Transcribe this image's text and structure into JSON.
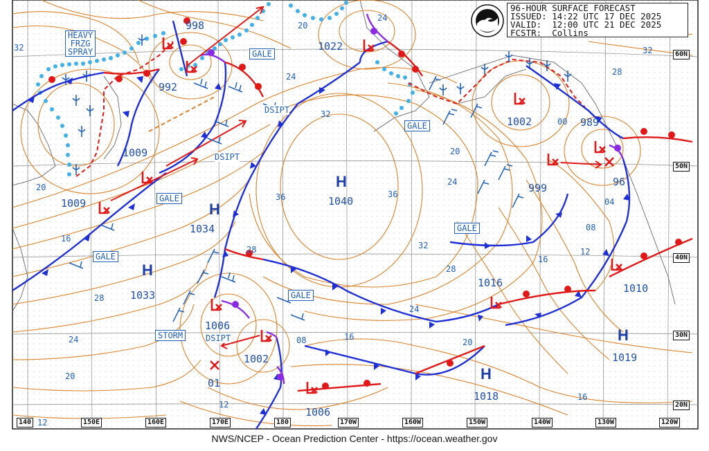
{
  "header": {
    "line1": "96-HOUR SURFACE FORECAST",
    "line2": "ISSUED: 14:22 UTC 17 DEC 2025",
    "line3": "VALID:  12:00 UTC 21 DEC 2025",
    "line4": "FCSTR:  Collins"
  },
  "logo": {
    "text": "NOAA"
  },
  "footer": {
    "credit": "NWS/NCEP - Ocean Prediction Center - https://ocean.weather.gov"
  },
  "latitudes": [
    "60N",
    "50N",
    "40N",
    "30N",
    "20N"
  ],
  "longitudes": [
    "140",
    "150E",
    "160E",
    "170E",
    "180",
    "170W",
    "160W",
    "150W",
    "140W",
    "130W",
    "120W"
  ],
  "warnings": {
    "heavy_frzg_spray": [
      "HEAVY",
      "FRZG",
      "SPRAY"
    ],
    "gale_1": "GALE",
    "gale_2": "GALE",
    "gale_3": "GALE",
    "gale_4": "GALE",
    "gale_5": "GALE",
    "gale_6": "GALE",
    "storm": "STORM"
  },
  "dsipt": {
    "d1": "DSIPT",
    "d2": "DSIPT",
    "d3": "DSIPT"
  },
  "highs": {
    "h1": "H",
    "h1_val": "1040",
    "h2": "H",
    "h2_val": "1034",
    "h3": "H",
    "h3_val": "1033",
    "h4": "H",
    "h4_val": "1018",
    "h5": "H",
    "h5_val": "1019"
  },
  "lows": {
    "l998": "998",
    "l992": "992",
    "l1009a": "1009",
    "l1009b": "1009",
    "l1022": "1022",
    "l1002": "1002",
    "l989": "989",
    "l999": "999",
    "l96": "96",
    "l1016": "1016",
    "l1010": "1010",
    "l1006a": "1006",
    "l1002b": "1002",
    "l1006b": "1006",
    "l01": "01"
  },
  "iso_labels": {
    "i32a": "32",
    "i20a": "20",
    "i24a": "24",
    "i24b": "24",
    "i32b": "32",
    "i36a": "36",
    "i36b": "36",
    "i32c": "32",
    "i28a": "28",
    "i28b": "28",
    "i24c": "24",
    "i20b": "20",
    "i16a": "16",
    "i28c": "28",
    "i24d": "24",
    "i20c": "20",
    "i12a": "12",
    "i12b": "12",
    "i08a": "08",
    "i16b": "16",
    "i24e": "24",
    "i20d": "20",
    "i16c": "16",
    "i16d": "16",
    "i12c": "12",
    "i08b": "08",
    "i04": "04",
    "i00": "00",
    "i28d": "28",
    "i32d": "32"
  },
  "colors": {
    "isobar": "#d9822b",
    "cold_front": "#1f2fd6",
    "warm_front": "#e01818",
    "occluded": "#8a2be2",
    "ice_edge": "#3fb0e8",
    "text_blue": "#1f5fb8",
    "grid": "#9a9a9a"
  }
}
